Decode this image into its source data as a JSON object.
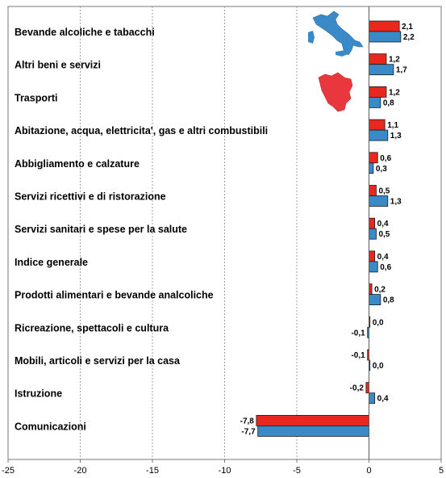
{
  "chart_data": {
    "type": "bar",
    "orientation": "horizontal",
    "categories": [
      "Bevande alcoliche e tabacchi",
      "Altri beni e servizi",
      "Trasporti",
      "Abitazione, acqua, elettricita', gas e altri combustibili",
      "Abbigliamento e calzature",
      "Servizi ricettivi e di ristorazione",
      "Servizi sanitari e spese per la salute",
      "Indice generale",
      "Prodotti alimentari e bevande analcoliche",
      "Ricreazione, spettacoli e cultura",
      "Mobili, articoli e servizi per la casa",
      "Istruzione",
      "Comunicazioni"
    ],
    "series": [
      {
        "values": [
          2.1,
          1.2,
          1.2,
          1.1,
          0.6,
          0.5,
          0.4,
          0.4,
          0.2,
          0.0,
          -0.1,
          -0.2,
          -7.8
        ],
        "labels": [
          "2,1",
          "1,2",
          "1,2",
          "1,1",
          "0,6",
          "0,5",
          "0,4",
          "0,4",
          "0,2",
          "0,0",
          "-0,1",
          "-0,2",
          "-7,8"
        ],
        "color": "#e8281e",
        "legend_icon": "tuscany-map-icon"
      },
      {
        "values": [
          2.2,
          1.7,
          0.8,
          1.3,
          0.3,
          1.3,
          0.5,
          0.6,
          0.8,
          -0.1,
          0.0,
          0.4,
          -7.7
        ],
        "labels": [
          "2,2",
          "1,7",
          "0,8",
          "1,3",
          "0,3",
          "1,3",
          "0,5",
          "0,6",
          "0,8",
          "-0,1",
          "0,0",
          "0,4",
          "-7,7"
        ],
        "color": "#3b8ac8",
        "legend_icon": "italy-map-icon"
      }
    ],
    "xlim": [
      -25,
      5
    ],
    "xticks": [
      -25,
      -20,
      -15,
      -10,
      -5,
      0,
      5
    ],
    "xtick_labels": [
      "-25",
      "-20",
      "-15",
      "-10",
      "-5",
      "0",
      "5"
    ],
    "grid": "vertical dashed",
    "legend": "top-right map icons"
  }
}
